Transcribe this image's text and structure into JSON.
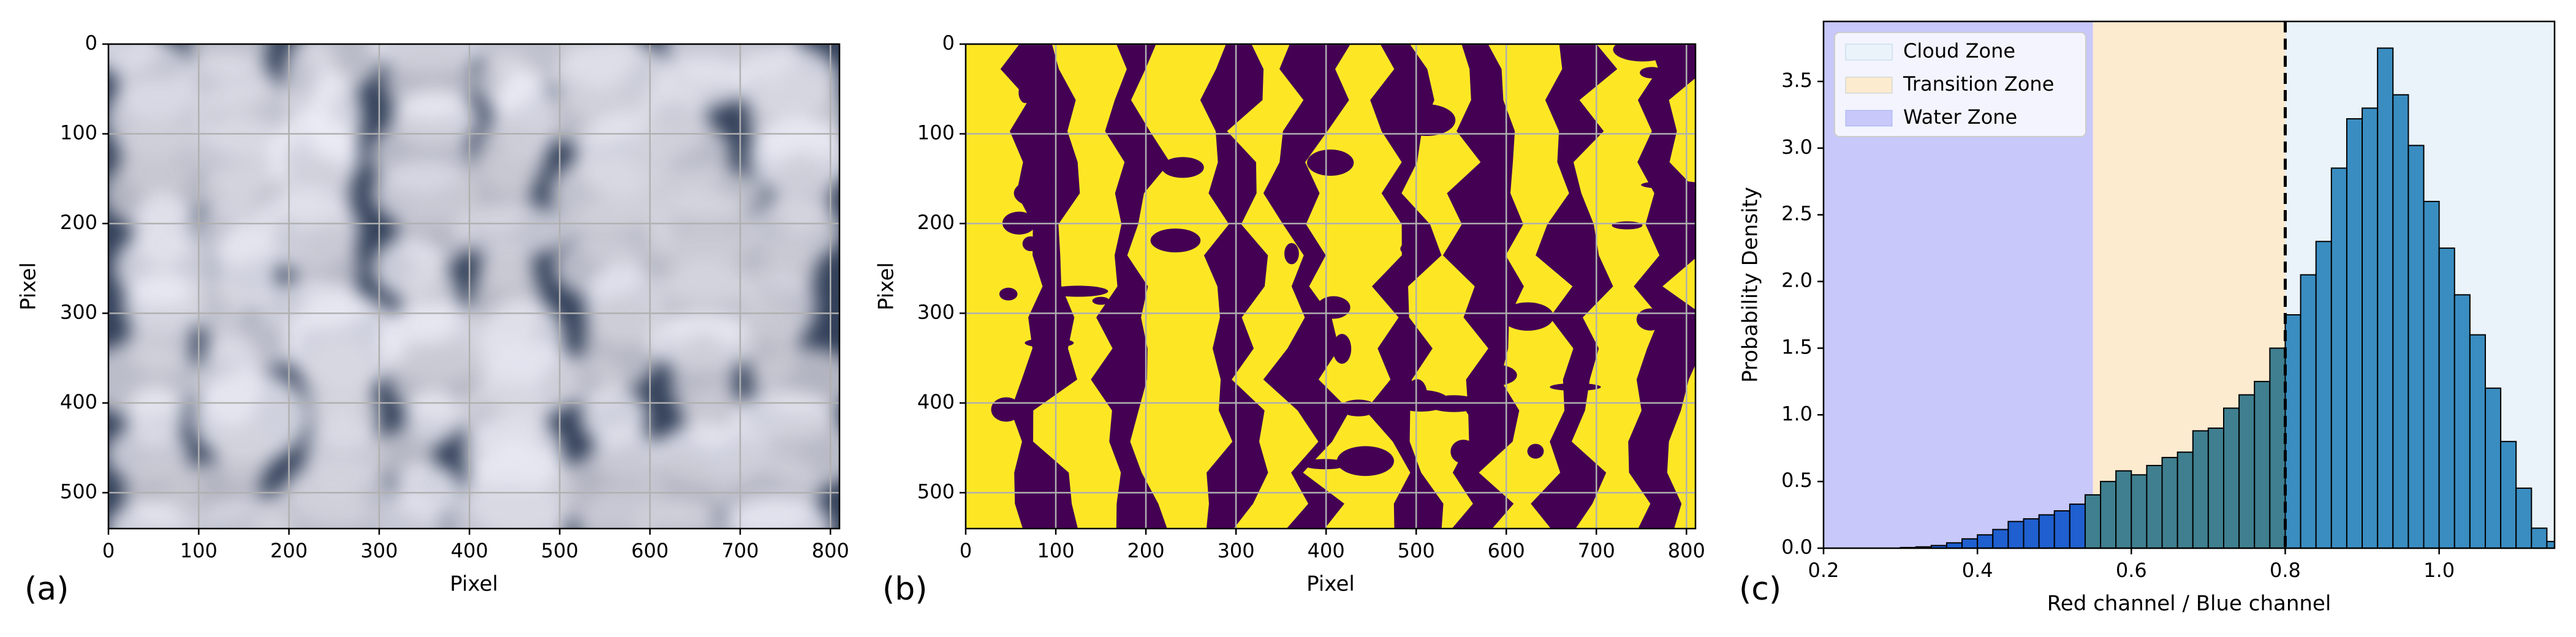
{
  "chart_data": [
    {
      "type": "image",
      "label": "(a)",
      "xlabel": "Pixel",
      "ylabel": "Pixel",
      "xlim": [
        0,
        810
      ],
      "ylim": [
        540,
        0
      ],
      "xticks": [
        0,
        100,
        200,
        300,
        400,
        500,
        600,
        700,
        800
      ],
      "yticks": [
        0,
        100,
        200,
        300,
        400,
        500
      ],
      "grid": true
    },
    {
      "type": "mask",
      "label": "(b)",
      "xlabel": "Pixel",
      "ylabel": "Pixel",
      "xlim": [
        0,
        810
      ],
      "ylim": [
        540,
        0
      ],
      "xticks": [
        0,
        100,
        200,
        300,
        400,
        500,
        600,
        700,
        800
      ],
      "yticks": [
        0,
        100,
        200,
        300,
        400,
        500
      ],
      "grid": true
    },
    {
      "type": "histogram",
      "label": "(c)",
      "xlabel": "Red channel / Blue channel",
      "ylabel": "Probability Density",
      "xlim": [
        0.2,
        1.15
      ],
      "ylim": [
        0,
        3.95
      ],
      "xticks": [
        0.2,
        0.4,
        0.6,
        0.8,
        {
          "value": 1.0,
          "label": "1.0"
        }
      ],
      "yticks": [
        {
          "value": 0,
          "label": "0.0"
        },
        0.5,
        {
          "value": 1,
          "label": "1.0"
        },
        1.5,
        {
          "value": 2,
          "label": "2.0"
        },
        2.5,
        {
          "value": 3,
          "label": "3.0"
        },
        3.5
      ],
      "bins": [
        0.2,
        0.22,
        0.24,
        0.26,
        0.28,
        0.3,
        0.32,
        0.34,
        0.36,
        0.38,
        0.4,
        0.42,
        0.44,
        0.46,
        0.48,
        0.5,
        0.52,
        0.54,
        0.56,
        0.58,
        0.6,
        0.62,
        0.64,
        0.66,
        0.68,
        0.7,
        0.72,
        0.74,
        0.76,
        0.78,
        0.8,
        0.82,
        0.84,
        0.86,
        0.88,
        0.9,
        0.92,
        0.94,
        0.96,
        0.98,
        1.0,
        1.02,
        1.04,
        1.06,
        1.08,
        1.1,
        1.12,
        1.14,
        1.16
      ],
      "values": [
        0,
        0,
        0,
        0,
        0,
        0.005,
        0.01,
        0.02,
        0.04,
        0.07,
        0.1,
        0.14,
        0.2,
        0.22,
        0.25,
        0.28,
        0.33,
        0.4,
        0.5,
        0.58,
        0.55,
        0.62,
        0.68,
        0.72,
        0.88,
        0.9,
        1.05,
        1.15,
        1.25,
        1.5,
        1.75,
        2.05,
        2.3,
        2.85,
        3.22,
        3.3,
        3.75,
        3.4,
        3.02,
        2.6,
        2.25,
        1.9,
        1.6,
        1.2,
        0.8,
        0.45,
        0.15,
        0.05
      ],
      "zones": [
        {
          "name": "Cloud Zone",
          "color": "#eaf3fa",
          "bar_color": "#3a8dc0",
          "range": [
            0.8,
            1.15
          ]
        },
        {
          "name": "Transition Zone",
          "color": "#fdebd0",
          "bar_color": "#3f7f8f",
          "range": [
            0.55,
            0.8
          ]
        },
        {
          "name": "Water Zone",
          "color": "#c8c8fa",
          "bar_color": "#1f5fcf",
          "range": [
            0.2,
            0.55
          ]
        }
      ],
      "threshold": 0.8,
      "legend": "upper left"
    }
  ]
}
